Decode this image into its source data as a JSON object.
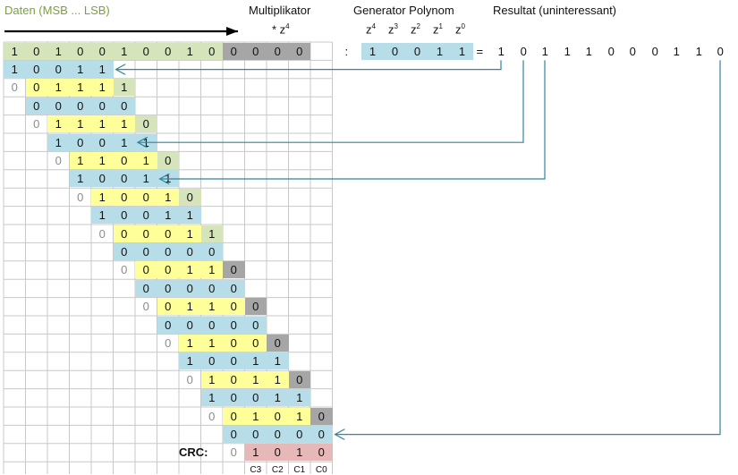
{
  "header": {
    "daten_label": "Daten (MSB ... LSB)",
    "multiplikator_label": "Multiplikator",
    "multiplikator_factor": "* z",
    "multiplikator_exp": "4",
    "generator_label": "Generator Polynom",
    "generator_terms": [
      {
        "base": "z",
        "exp": "4"
      },
      {
        "base": "z",
        "exp": "3"
      },
      {
        "base": "z",
        "exp": "2"
      },
      {
        "base": "z",
        "exp": "1"
      },
      {
        "base": "z",
        "exp": "0"
      }
    ],
    "resultat_label": "Resultat (uninteressant)"
  },
  "data_bits": [
    "1",
    "0",
    "1",
    "0",
    "0",
    "1",
    "0",
    "0",
    "1",
    "0"
  ],
  "multiplier_bits": [
    "0",
    "0",
    "0",
    "0"
  ],
  "divide_sign": ":",
  "generator_bits": [
    "1",
    "0",
    "0",
    "1",
    "1"
  ],
  "equals_sign": "=",
  "result_bits": [
    "1",
    "0",
    "1",
    "1",
    "1",
    "0",
    "0",
    "0",
    "1",
    "1",
    "0"
  ],
  "steps": [
    {
      "lead": "",
      "remainder": [
        "1",
        "0",
        "0",
        "1",
        "1"
      ]
    },
    {
      "lead": "0",
      "remainder": [
        "0",
        "1",
        "1",
        "1"
      ],
      "down": "1",
      "subtract": [
        "0",
        "0",
        "0",
        "0",
        "0"
      ]
    },
    {
      "lead": "0",
      "remainder": [
        "1",
        "1",
        "1",
        "1"
      ],
      "down": "0",
      "subtract": [
        "1",
        "0",
        "0",
        "1",
        "1"
      ]
    },
    {
      "lead": "0",
      "remainder": [
        "1",
        "1",
        "0",
        "1"
      ],
      "down": "0",
      "subtract": [
        "1",
        "0",
        "0",
        "1",
        "1"
      ]
    },
    {
      "lead": "0",
      "remainder": [
        "1",
        "0",
        "0",
        "1"
      ],
      "down": "0",
      "subtract": [
        "1",
        "0",
        "0",
        "1",
        "1"
      ]
    },
    {
      "lead": "0",
      "remainder": [
        "0",
        "0",
        "0",
        "1"
      ],
      "down": "1",
      "subtract": [
        "0",
        "0",
        "0",
        "0",
        "0"
      ]
    },
    {
      "lead": "0",
      "remainder": [
        "0",
        "0",
        "1",
        "1"
      ],
      "down": "0",
      "subtract": [
        "0",
        "0",
        "0",
        "0",
        "0"
      ]
    },
    {
      "lead": "0",
      "remainder": [
        "0",
        "1",
        "1",
        "0"
      ],
      "down": "0",
      "subtract": [
        "0",
        "0",
        "0",
        "0",
        "0"
      ]
    },
    {
      "lead": "0",
      "remainder": [
        "1",
        "1",
        "0",
        "0"
      ],
      "down": "0",
      "subtract": [
        "1",
        "0",
        "0",
        "1",
        "1"
      ]
    },
    {
      "lead": "0",
      "remainder": [
        "1",
        "0",
        "1",
        "1"
      ],
      "down": "0",
      "subtract": [
        "1",
        "0",
        "0",
        "1",
        "1"
      ]
    },
    {
      "lead": "0",
      "remainder": [
        "0",
        "1",
        "0",
        "1"
      ],
      "down": "0",
      "subtract": [
        "0",
        "0",
        "0",
        "0",
        "0"
      ]
    }
  ],
  "crc": {
    "label": "CRC:",
    "lead": "0",
    "bits": [
      "1",
      "0",
      "1",
      "0"
    ],
    "names": [
      "C3",
      "C2",
      "C1",
      "C0"
    ]
  },
  "colors": {
    "green": "#d6e4bc",
    "yellow": "#ffff99",
    "blue": "#b7dde8",
    "gray": "#a6a6a6",
    "pink": "#e6b8b7",
    "grid": "#c8c8c8",
    "arrow": "#31859c",
    "lead_text": "#8c8c8c"
  }
}
